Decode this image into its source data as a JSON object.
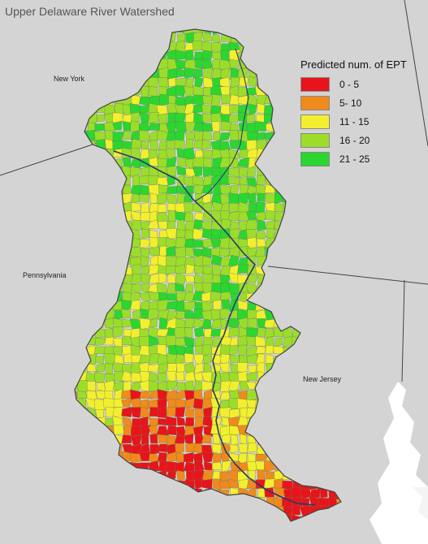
{
  "title": "Upper Delaware River Watershed",
  "state_labels": {
    "new_york": "New York",
    "pennsylvania": "Pennsylvania",
    "new_jersey": "New Jersey"
  },
  "legend": {
    "title": "Predicted num. of EPT",
    "items": [
      {
        "label": "0 - 5",
        "color": "#e8141b"
      },
      {
        "label": "5- 10",
        "color": "#f08a1c"
      },
      {
        "label": "11 - 15",
        "color": "#f2ef30"
      },
      {
        "label": "16 - 20",
        "color": "#9cdd2c"
      },
      {
        "label": "21 - 25",
        "color": "#2bd630"
      }
    ]
  },
  "colors": {
    "background": "#d4d4d4",
    "land": "#dcdcdc",
    "water": "#ffffff",
    "boundary": "#444444",
    "river": "#2a3a6a"
  }
}
